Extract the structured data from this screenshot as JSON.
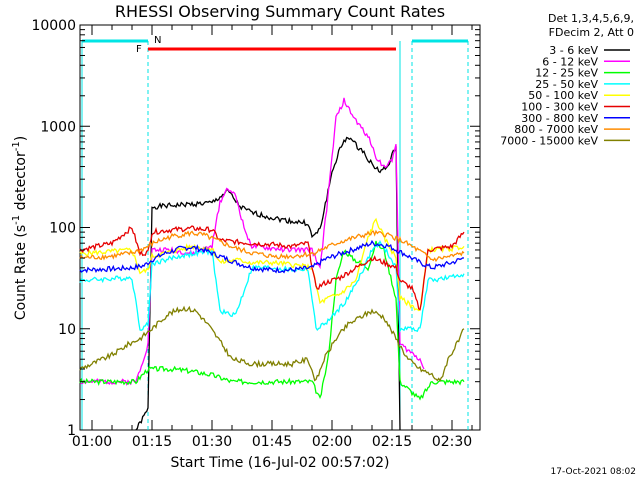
{
  "chart_data": {
    "type": "line",
    "title": "RHESSI Observing Summary Count Rates",
    "xlabel": "Start Time (16-Jul-02 00:57:02)",
    "ylabel_parts": [
      "Count Rate (s",
      "-1",
      " detector",
      "-1",
      ")"
    ],
    "ylabel": "Count Rate (s-1 detector-1)",
    "y_scale": "log",
    "ylim": [
      1,
      10000
    ],
    "xlim_minutes_from_start": [
      -3,
      97
    ],
    "x_tick_labels": [
      "01:00",
      "01:15",
      "01:30",
      "01:45",
      "02:00",
      "02:15",
      "02:30"
    ],
    "x_ticks_minutes": [
      0,
      15,
      30,
      45,
      60,
      75,
      90
    ],
    "y_tick_labels": [
      "1",
      "10",
      "100",
      "1000",
      "10000"
    ],
    "y_ticks": [
      1,
      10,
      100,
      1000,
      10000
    ],
    "legend_header": [
      "Det 1,3,4,5,6,9,",
      "FDecim 2, Att 0"
    ],
    "legend_placement": "right",
    "footer_date": "17-Oct-2021 08:02",
    "flags": [
      {
        "label": "F",
        "color": "#ff0000",
        "x_start": 14,
        "x_end": 76
      },
      {
        "label": "N",
        "color": "#00e5e5",
        "x_start": 14,
        "x_end": 76
      }
    ],
    "series": [
      {
        "name": "3 - 6 keV",
        "color": "#000000",
        "points": [
          [
            11,
            1
          ],
          [
            14,
            1.6
          ],
          [
            15,
            160
          ],
          [
            20,
            165
          ],
          [
            25,
            170
          ],
          [
            30,
            175
          ],
          [
            32,
            200
          ],
          [
            34,
            230
          ],
          [
            37,
            160
          ],
          [
            40,
            140
          ],
          [
            45,
            125
          ],
          [
            50,
            115
          ],
          [
            54,
            110
          ],
          [
            55,
            80
          ],
          [
            57,
            95
          ],
          [
            60,
            350
          ],
          [
            62,
            600
          ],
          [
            64,
            800
          ],
          [
            66,
            650
          ],
          [
            68,
            550
          ],
          [
            70,
            420
          ],
          [
            72,
            360
          ],
          [
            74,
            400
          ],
          [
            76,
            650
          ],
          [
            77,
            1
          ]
        ]
      },
      {
        "name": "6 - 12 keV",
        "color": "#ff00ff",
        "points": [
          [
            -3,
            3
          ],
          [
            11,
            3
          ],
          [
            14,
            7
          ],
          [
            15,
            60
          ],
          [
            20,
            60
          ],
          [
            25,
            55
          ],
          [
            30,
            65
          ],
          [
            32,
            180
          ],
          [
            34,
            250
          ],
          [
            36,
            200
          ],
          [
            38,
            100
          ],
          [
            40,
            65
          ],
          [
            45,
            62
          ],
          [
            50,
            60
          ],
          [
            55,
            60
          ],
          [
            57,
            40
          ],
          [
            59,
            200
          ],
          [
            61,
            1200
          ],
          [
            63,
            1800
          ],
          [
            65,
            1300
          ],
          [
            67,
            1000
          ],
          [
            69,
            800
          ],
          [
            71,
            500
          ],
          [
            73,
            400
          ],
          [
            75,
            450
          ],
          [
            76,
            700
          ],
          [
            77,
            7
          ],
          [
            82,
            5
          ],
          [
            83,
            4
          ]
        ]
      },
      {
        "name": "12 - 25 keV",
        "color": "#00ff00",
        "points": [
          [
            -3,
            3
          ],
          [
            11,
            3
          ],
          [
            14,
            4
          ],
          [
            15,
            4
          ],
          [
            20,
            4
          ],
          [
            25,
            3.8
          ],
          [
            30,
            3.5
          ],
          [
            35,
            3
          ],
          [
            40,
            3
          ],
          [
            45,
            3
          ],
          [
            50,
            3
          ],
          [
            55,
            3
          ],
          [
            57,
            2
          ],
          [
            59,
            5
          ],
          [
            61,
            30
          ],
          [
            63,
            60
          ],
          [
            65,
            50
          ],
          [
            67,
            45
          ],
          [
            69,
            40
          ],
          [
            71,
            70
          ],
          [
            73,
            60
          ],
          [
            76,
            20
          ],
          [
            77,
            3
          ],
          [
            82,
            2
          ],
          [
            85,
            3
          ],
          [
            90,
            3
          ],
          [
            93,
            3
          ]
        ]
      },
      {
        "name": "25 - 50 keV",
        "color": "#00ffff",
        "points": [
          [
            -3,
            30
          ],
          [
            10,
            32
          ],
          [
            12,
            10
          ],
          [
            14,
            11
          ],
          [
            15,
            44
          ],
          [
            20,
            50
          ],
          [
            25,
            55
          ],
          [
            30,
            58
          ],
          [
            32,
            15
          ],
          [
            34,
            14
          ],
          [
            36,
            14
          ],
          [
            40,
            40
          ],
          [
            45,
            40
          ],
          [
            50,
            38
          ],
          [
            54,
            39
          ],
          [
            56,
            10
          ],
          [
            58,
            11
          ],
          [
            60,
            13
          ],
          [
            64,
            20
          ],
          [
            68,
            40
          ],
          [
            70,
            60
          ],
          [
            72,
            70
          ],
          [
            74,
            55
          ],
          [
            76,
            40
          ],
          [
            77,
            10
          ],
          [
            82,
            10
          ],
          [
            84,
            30
          ],
          [
            90,
            32
          ],
          [
            93,
            35
          ]
        ]
      },
      {
        "name": "50 - 100 keV",
        "color": "#ffff00",
        "points": [
          [
            -3,
            55
          ],
          [
            10,
            60
          ],
          [
            12,
            36
          ],
          [
            14,
            38
          ],
          [
            15,
            52
          ],
          [
            20,
            58
          ],
          [
            25,
            65
          ],
          [
            30,
            62
          ],
          [
            32,
            45
          ],
          [
            36,
            48
          ],
          [
            40,
            45
          ],
          [
            45,
            45
          ],
          [
            50,
            43
          ],
          [
            55,
            40
          ],
          [
            57,
            18
          ],
          [
            59,
            20
          ],
          [
            62,
            22
          ],
          [
            66,
            30
          ],
          [
            69,
            80
          ],
          [
            71,
            120
          ],
          [
            73,
            80
          ],
          [
            76,
            50
          ],
          [
            77,
            20
          ],
          [
            82,
            15
          ],
          [
            84,
            60
          ],
          [
            90,
            62
          ],
          [
            93,
            65
          ]
        ]
      },
      {
        "name": "100 - 300 keV",
        "color": "#e60000",
        "points": [
          [
            -3,
            60
          ],
          [
            5,
            70
          ],
          [
            10,
            100
          ],
          [
            12,
            55
          ],
          [
            14,
            57
          ],
          [
            15,
            90
          ],
          [
            20,
            95
          ],
          [
            25,
            98
          ],
          [
            30,
            95
          ],
          [
            32,
            75
          ],
          [
            36,
            72
          ],
          [
            40,
            70
          ],
          [
            45,
            68
          ],
          [
            50,
            65
          ],
          [
            54,
            70
          ],
          [
            56,
            25
          ],
          [
            58,
            28
          ],
          [
            62,
            32
          ],
          [
            66,
            40
          ],
          [
            70,
            50
          ],
          [
            73,
            45
          ],
          [
            76,
            40
          ],
          [
            77,
            30
          ],
          [
            80,
            25
          ],
          [
            82,
            15
          ],
          [
            84,
            60
          ],
          [
            90,
            65
          ],
          [
            93,
            90
          ]
        ]
      },
      {
        "name": "300 - 800 keV",
        "color": "#0000ff",
        "points": [
          [
            -3,
            38
          ],
          [
            5,
            39
          ],
          [
            10,
            40
          ],
          [
            13,
            42
          ],
          [
            15,
            48
          ],
          [
            18,
            55
          ],
          [
            22,
            62
          ],
          [
            25,
            64
          ],
          [
            28,
            60
          ],
          [
            32,
            52
          ],
          [
            36,
            45
          ],
          [
            40,
            40
          ],
          [
            45,
            38
          ],
          [
            50,
            38
          ],
          [
            55,
            40
          ],
          [
            58,
            48
          ],
          [
            62,
            55
          ],
          [
            66,
            62
          ],
          [
            70,
            70
          ],
          [
            74,
            66
          ],
          [
            78,
            55
          ],
          [
            82,
            45
          ],
          [
            85,
            40
          ],
          [
            90,
            45
          ],
          [
            93,
            50
          ]
        ]
      },
      {
        "name": "800 - 7000 keV",
        "color": "#ff8c00",
        "points": [
          [
            -3,
            50
          ],
          [
            5,
            52
          ],
          [
            10,
            56
          ],
          [
            13,
            62
          ],
          [
            16,
            72
          ],
          [
            20,
            82
          ],
          [
            25,
            88
          ],
          [
            28,
            84
          ],
          [
            32,
            72
          ],
          [
            36,
            62
          ],
          [
            40,
            56
          ],
          [
            45,
            52
          ],
          [
            50,
            52
          ],
          [
            55,
            55
          ],
          [
            58,
            62
          ],
          [
            62,
            72
          ],
          [
            66,
            80
          ],
          [
            70,
            88
          ],
          [
            74,
            85
          ],
          [
            78,
            72
          ],
          [
            82,
            58
          ],
          [
            85,
            48
          ],
          [
            90,
            52
          ],
          [
            93,
            56
          ]
        ]
      },
      {
        "name": "7000 - 15000 keV",
        "color": "#808000",
        "points": [
          [
            -3,
            4
          ],
          [
            5,
            5.5
          ],
          [
            9,
            7
          ],
          [
            12,
            8
          ],
          [
            15,
            10
          ],
          [
            19,
            14
          ],
          [
            23,
            16
          ],
          [
            26,
            15
          ],
          [
            29,
            11
          ],
          [
            32,
            7.5
          ],
          [
            35,
            5
          ],
          [
            40,
            4.5
          ],
          [
            45,
            4.5
          ],
          [
            50,
            4.5
          ],
          [
            54,
            5
          ],
          [
            56,
            3
          ],
          [
            58,
            5
          ],
          [
            61,
            8
          ],
          [
            64,
            11
          ],
          [
            67,
            13
          ],
          [
            70,
            15
          ],
          [
            73,
            13
          ],
          [
            76,
            8
          ],
          [
            79,
            5
          ],
          [
            82,
            4
          ],
          [
            85,
            3.5
          ],
          [
            87,
            3
          ],
          [
            89,
            5
          ],
          [
            92,
            8
          ],
          [
            93,
            10
          ]
        ]
      }
    ]
  }
}
